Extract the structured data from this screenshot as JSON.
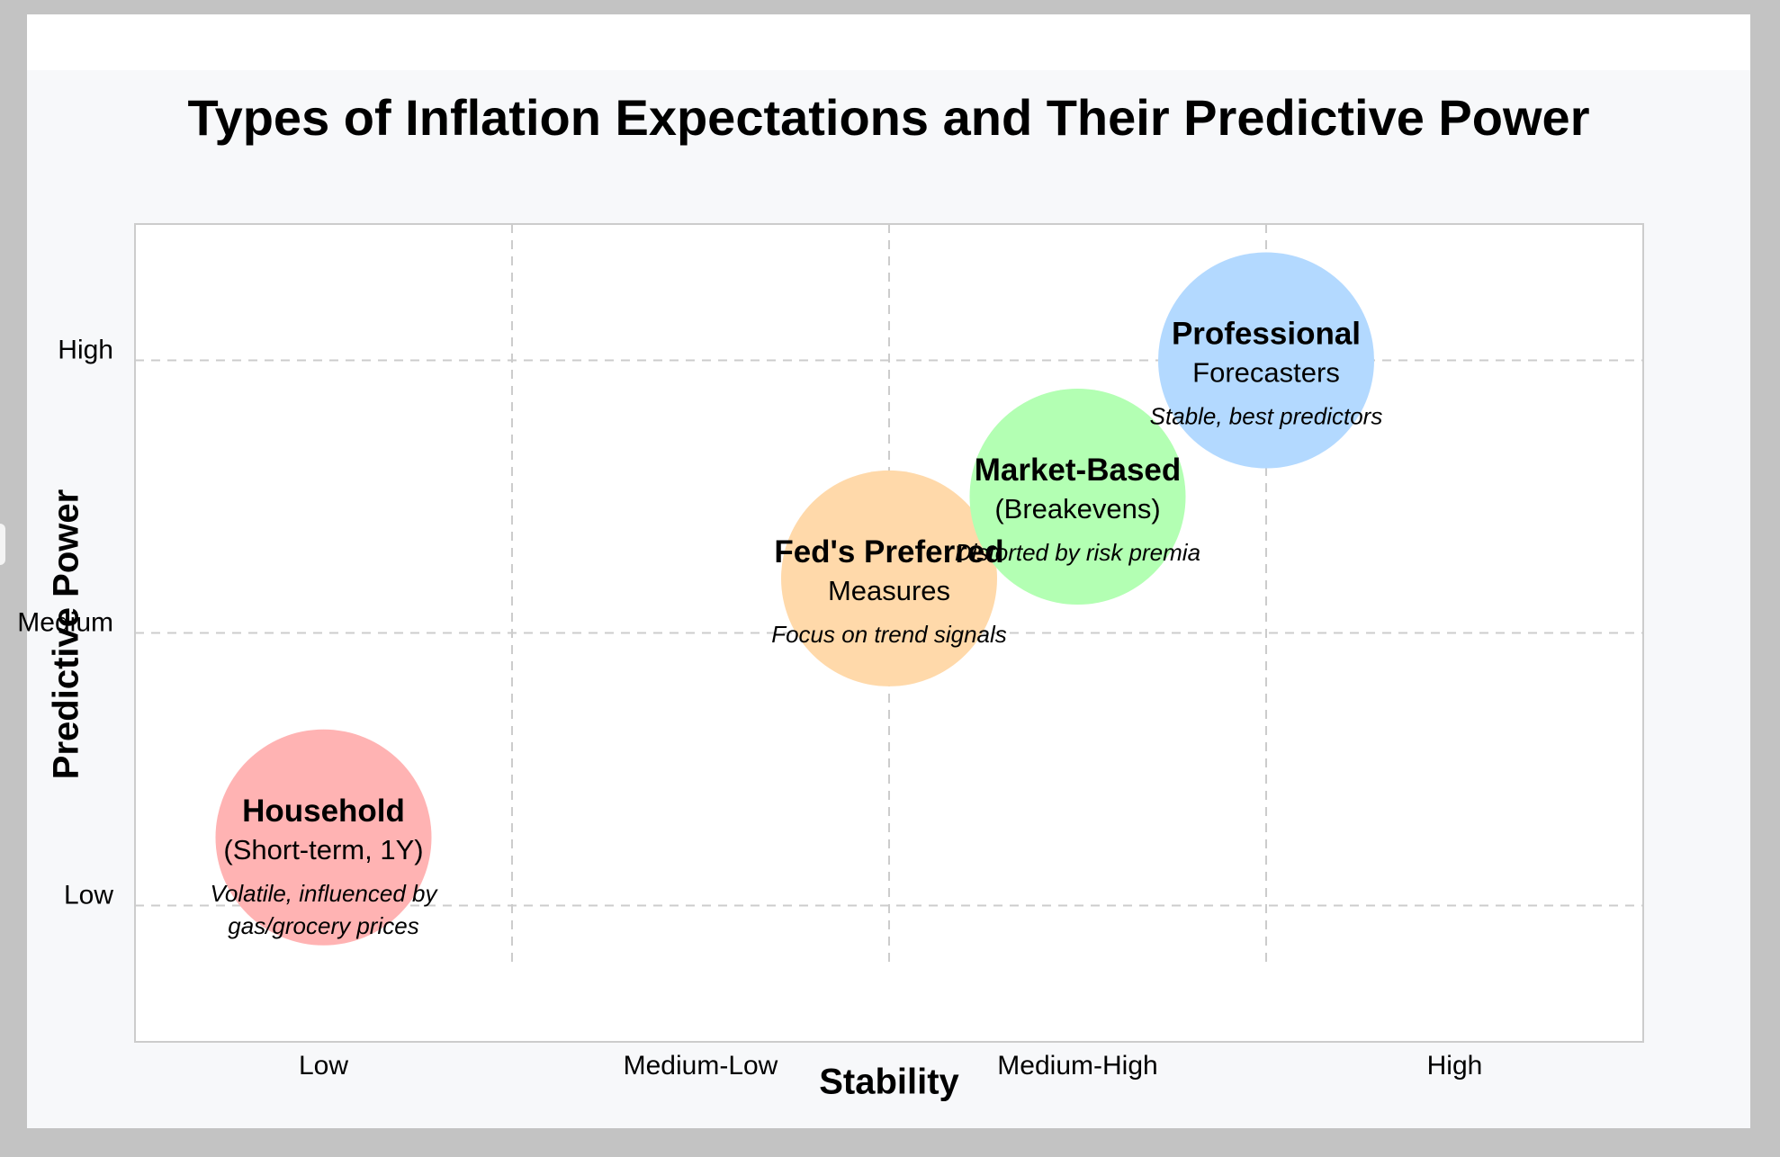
{
  "title": "Types of Inflation Expectations and Their Predictive Power",
  "chart_data": {
    "type": "scatter",
    "title": "Types of Inflation Expectations and Their Predictive Power",
    "xlabel": "Stability",
    "ylabel": "Predictive Power",
    "x_categories": [
      "Low",
      "Medium-Low",
      "Medium-High",
      "High"
    ],
    "y_categories": [
      "Low",
      "Medium",
      "High"
    ],
    "xlim": [
      0.5,
      4.5
    ],
    "ylim": [
      0.5,
      3.5
    ],
    "grid": true,
    "points": [
      {
        "name": "Household",
        "subtitle": "(Short-term, 1Y)",
        "note": [
          "Volatile, influenced by",
          "gas/grocery prices"
        ],
        "x": 1.0,
        "y": 1.25,
        "color": "#ffb3b3"
      },
      {
        "name": "Fed's Preferred",
        "subtitle": "Measures",
        "note": [
          "Focus on trend signals"
        ],
        "x": 2.5,
        "y": 2.2,
        "color": "#ffd9aa"
      },
      {
        "name": "Market-Based",
        "subtitle": "(Breakevens)",
        "note": [
          "Distorted by risk premia"
        ],
        "x": 3.0,
        "y": 2.5,
        "color": "#b3ffb3"
      },
      {
        "name": "Professional",
        "subtitle": "Forecasters",
        "note": [
          "Stable, best predictors"
        ],
        "x": 3.5,
        "y": 3.0,
        "color": "#b3d9ff"
      }
    ]
  }
}
